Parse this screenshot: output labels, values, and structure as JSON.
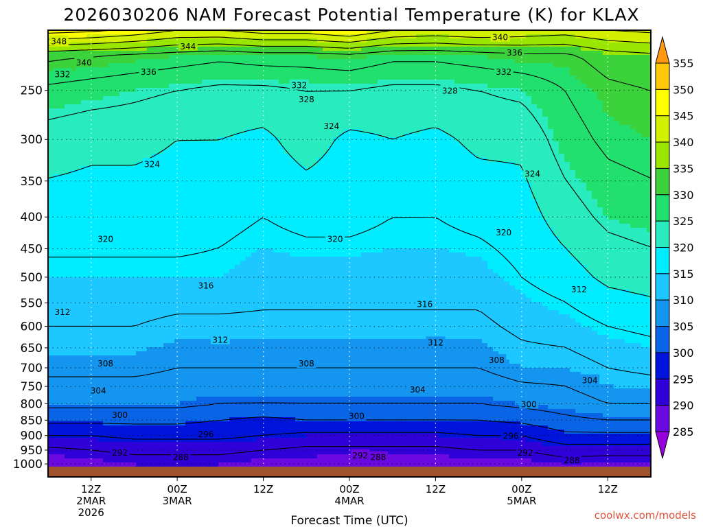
{
  "chart_data": {
    "type": "heatmap",
    "title": "2026030206 NAM Forecast Potential Temperature (K) for KLAX",
    "xlabel": "Forecast Time (UTC)",
    "ylabel": "",
    "credit": "coolwx.com/models",
    "y_scale": "log",
    "y_axis_reversed": true,
    "ylim": [
      200,
      1010
    ],
    "grid": true,
    "pressure_ticks": [
      250,
      300,
      350,
      400,
      450,
      500,
      550,
      600,
      650,
      700,
      750,
      800,
      850,
      900,
      950,
      1000
    ],
    "time_ticks": [
      {
        "hour": 0,
        "lines": [
          "12Z",
          "2MAR",
          "2026"
        ]
      },
      {
        "hour": 12,
        "lines": [
          "00Z",
          "3MAR"
        ]
      },
      {
        "hour": 24,
        "lines": [
          "12Z"
        ]
      },
      {
        "hour": 36,
        "lines": [
          "00Z",
          "4MAR"
        ]
      },
      {
        "hour": 48,
        "lines": [
          "12Z"
        ]
      },
      {
        "hour": 60,
        "lines": [
          "00Z",
          "5MAR"
        ]
      },
      {
        "hour": 72,
        "lines": [
          "12Z"
        ]
      }
    ],
    "xlim_hours": [
      -6,
      78
    ],
    "colorbar": {
      "levels": [
        355,
        350,
        345,
        340,
        335,
        330,
        325,
        320,
        315,
        310,
        305,
        300,
        295,
        290,
        285
      ],
      "colors": [
        "#ff9a10",
        "#ffc80a",
        "#ffff00",
        "#d2f000",
        "#9be600",
        "#3cd23c",
        "#22e06e",
        "#28ecc0",
        "#00ecff",
        "#1cc8ff",
        "#1496f0",
        "#0a64e6",
        "#0014dc",
        "#3000d8",
        "#6a0ae0",
        "#9600dc"
      ]
    },
    "contour_levels": [
      288,
      292,
      296,
      300,
      304,
      308,
      312,
      316,
      320,
      324,
      328,
      332,
      336,
      340,
      344,
      348
    ],
    "theta_profiles": [
      {
        "hour": -6,
        "theta": [
          288,
          291,
          296,
          301,
          305,
          309,
          312,
          315,
          318,
          322,
          327,
          333,
          350
        ]
      },
      {
        "hour": 0,
        "theta": [
          289,
          292,
          296,
          301,
          305,
          309,
          312,
          315,
          318,
          321,
          326,
          332,
          349
        ]
      },
      {
        "hour": 6,
        "theta": [
          290,
          293,
          297,
          301,
          305,
          309,
          312,
          315,
          318,
          321,
          325,
          331,
          347
        ]
      },
      {
        "hour": 12,
        "theta": [
          290,
          293,
          297,
          301,
          305,
          308,
          311,
          315,
          318,
          320,
          324,
          330,
          344
        ]
      },
      {
        "hour": 18,
        "theta": [
          290,
          293,
          297,
          300,
          304,
          308,
          311,
          315,
          317,
          320,
          323,
          329,
          344
        ]
      },
      {
        "hour": 24,
        "theta": [
          289,
          292,
          296,
          299,
          304,
          308,
          311,
          314,
          316,
          319,
          323,
          330,
          346
        ]
      },
      {
        "hour": 30,
        "theta": [
          289,
          291,
          295,
          300,
          304,
          308,
          311,
          314,
          317,
          322,
          324,
          330,
          346
        ]
      },
      {
        "hour": 36,
        "theta": [
          288,
          291,
          295,
          300,
          304,
          308,
          311,
          314,
          317,
          319,
          324,
          331,
          348
        ]
      },
      {
        "hour": 42,
        "theta": [
          288,
          291,
          295,
          300,
          304,
          308,
          311,
          314,
          316,
          320,
          323,
          329,
          344
        ]
      },
      {
        "hour": 48,
        "theta": [
          288,
          291,
          295,
          300,
          304,
          308,
          311,
          314,
          316,
          319,
          323,
          329,
          343
        ]
      },
      {
        "hour": 54,
        "theta": [
          289,
          292,
          296,
          300,
          304,
          308,
          311,
          314,
          317,
          321,
          324,
          330,
          344
        ]
      },
      {
        "hour": 60,
        "theta": [
          289,
          292,
          296,
          301,
          305,
          310,
          313,
          316,
          318,
          321,
          325,
          331,
          343
        ]
      },
      {
        "hour": 66,
        "theta": [
          290,
          294,
          299,
          303,
          306,
          310,
          314,
          318,
          322,
          326,
          328,
          331,
          342
        ]
      },
      {
        "hour": 72,
        "theta": [
          289,
          294,
          299,
          304,
          308,
          312,
          316,
          321,
          325,
          329,
          331,
          334,
          344
        ]
      },
      {
        "hour": 78,
        "theta": [
          289,
          294,
          299,
          304,
          308,
          313,
          317,
          322,
          326,
          330,
          332,
          335,
          345
        ]
      }
    ],
    "profile_pressures": [
      1000,
      950,
      900,
      850,
      800,
      700,
      600,
      500,
      400,
      300,
      250,
      220,
      200
    ],
    "contour_labels": [
      {
        "text": "348",
        "hour": -4.5,
        "p": 208
      },
      {
        "text": "344",
        "hour": 13.5,
        "p": 212
      },
      {
        "text": "340",
        "hour": -1,
        "p": 225
      },
      {
        "text": "336",
        "hour": 8,
        "p": 233
      },
      {
        "text": "332",
        "hour": -4,
        "p": 235
      },
      {
        "text": "332",
        "hour": 29,
        "p": 245
      },
      {
        "text": "328",
        "hour": 30,
        "p": 258
      },
      {
        "text": "328",
        "hour": 50,
        "p": 250
      },
      {
        "text": "324",
        "hour": 33.5,
        "p": 285
      },
      {
        "text": "324",
        "hour": 8.5,
        "p": 328
      },
      {
        "text": "324",
        "hour": 61.5,
        "p": 340
      },
      {
        "text": "332",
        "hour": 57.5,
        "p": 233
      },
      {
        "text": "336",
        "hour": 59,
        "p": 217
      },
      {
        "text": "340",
        "hour": 57,
        "p": 205
      },
      {
        "text": "320",
        "hour": 2,
        "p": 433
      },
      {
        "text": "320",
        "hour": 34,
        "p": 433
      },
      {
        "text": "320",
        "hour": 57.5,
        "p": 423
      },
      {
        "text": "316",
        "hour": 16,
        "p": 515
      },
      {
        "text": "316",
        "hour": 46.5,
        "p": 552
      },
      {
        "text": "312",
        "hour": 68,
        "p": 522
      },
      {
        "text": "312",
        "hour": -4,
        "p": 568
      },
      {
        "text": "312",
        "hour": 18,
        "p": 630
      },
      {
        "text": "312",
        "hour": 48,
        "p": 636
      },
      {
        "text": "308",
        "hour": 2,
        "p": 688
      },
      {
        "text": "308",
        "hour": 30,
        "p": 688
      },
      {
        "text": "308",
        "hour": 56.5,
        "p": 679
      },
      {
        "text": "304",
        "hour": 1,
        "p": 760
      },
      {
        "text": "304",
        "hour": 45.5,
        "p": 757
      },
      {
        "text": "304",
        "hour": 69.5,
        "p": 732
      },
      {
        "text": "300",
        "hour": 4,
        "p": 832
      },
      {
        "text": "300",
        "hour": 37,
        "p": 836
      },
      {
        "text": "300",
        "hour": 61,
        "p": 800
      },
      {
        "text": "296",
        "hour": 16,
        "p": 894
      },
      {
        "text": "296",
        "hour": 58.5,
        "p": 900
      },
      {
        "text": "292",
        "hour": 4,
        "p": 958
      },
      {
        "text": "292",
        "hour": 37.5,
        "p": 967
      },
      {
        "text": "292",
        "hour": 60.5,
        "p": 958
      },
      {
        "text": "288",
        "hour": 12.5,
        "p": 973
      },
      {
        "text": "288",
        "hour": 40,
        "p": 974
      },
      {
        "text": "288",
        "hour": 67,
        "p": 985
      }
    ]
  }
}
